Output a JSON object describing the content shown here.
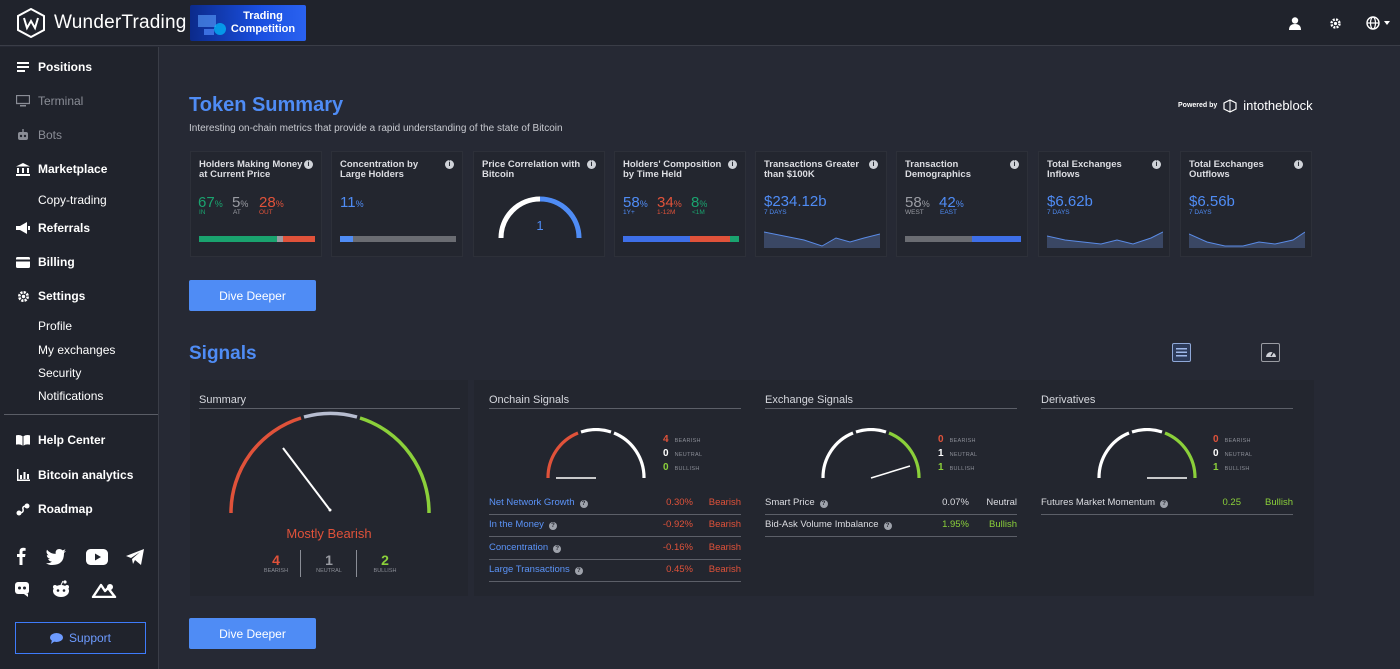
{
  "brand": {
    "name": "WunderTrading",
    "banner_line1": "Trading",
    "banner_line2": "Competition"
  },
  "topbar": {
    "icons": [
      "user-icon",
      "settings-icon",
      "globe-icon"
    ]
  },
  "sidebar": {
    "positions": "Positions",
    "terminal": "Terminal",
    "bots": "Bots",
    "marketplace": "Marketplace",
    "copy_trading": "Copy-trading",
    "referrals": "Referrals",
    "billing": "Billing",
    "settings": "Settings",
    "profile": "Profile",
    "my_exchanges": "My exchanges",
    "security": "Security",
    "notifications": "Notifications",
    "help_center": "Help Center",
    "bitcoin_analytics": "Bitcoin analytics",
    "roadmap": "Roadmap",
    "support": "Support"
  },
  "token_summary": {
    "title": "Token Summary",
    "subtitle": "Interesting on-chain metrics that provide a rapid understanding of the state of Bitcoin",
    "powered_by": "Powered by",
    "powered_brand": "intotheblock",
    "dive_deeper": "Dive Deeper",
    "cards": {
      "holders": {
        "title": "Holders Making Money at Current Price",
        "in": "67",
        "at": "5",
        "out": "28",
        "in_lbl": "IN",
        "at_lbl": "AT",
        "out_lbl": "OUT",
        "pct": "%"
      },
      "concentration": {
        "title": "Concentration by Large Holders",
        "value": "11",
        "pct": "%",
        "level": 11
      },
      "correlation": {
        "title": "Price Correlation with Bitcoin",
        "value": "1"
      },
      "composition": {
        "title": "Holders' Composition by Time Held",
        "a": "58",
        "b": "34",
        "c": "8",
        "a_lbl": "1Y+",
        "b_lbl": "1-12M",
        "c_lbl": "<1M",
        "pct": "%"
      },
      "transactions": {
        "title": "Transactions Greater than $100K",
        "value": "$234.12b",
        "days": "7 DAYS"
      },
      "demographics": {
        "title": "Transaction Demographics",
        "west": "58",
        "east": "42",
        "west_lbl": "WEST",
        "east_lbl": "EAST",
        "pct": "%"
      },
      "inflows": {
        "title": "Total Exchanges Inflows",
        "value": "$6.62b",
        "days": "7 DAYS"
      },
      "outflows": {
        "title": "Total Exchanges Outflows",
        "value": "$6.56b",
        "days": "7 DAYS"
      }
    }
  },
  "signals": {
    "title": "Signals",
    "dive_deeper": "Dive Deeper",
    "summary": {
      "title": "Summary",
      "verdict": "Mostly Bearish",
      "bearish": "4",
      "neutral": "1",
      "bullish": "2",
      "bearish_lbl": "BEARISH",
      "neutral_lbl": "NEUTRAL",
      "bullish_lbl": "BULLISH"
    },
    "onchain": {
      "title": "Onchain Signals",
      "bearish": "4",
      "neutral": "0",
      "bullish": "0",
      "rows": [
        {
          "name": "Net Network Growth",
          "value": "0.30%",
          "status": "Bearish"
        },
        {
          "name": "In the Money",
          "value": "-0.92%",
          "status": "Bearish"
        },
        {
          "name": "Concentration",
          "value": "-0.16%",
          "status": "Bearish"
        },
        {
          "name": "Large Transactions",
          "value": "0.45%",
          "status": "Bearish"
        }
      ]
    },
    "exchange": {
      "title": "Exchange Signals",
      "bearish": "0",
      "neutral": "1",
      "bullish": "1",
      "rows": [
        {
          "name": "Smart Price",
          "value": "0.07%",
          "status": "Neutral"
        },
        {
          "name": "Bid-Ask Volume Imbalance",
          "value": "1.95%",
          "status": "Bullish"
        }
      ]
    },
    "derivatives": {
      "title": "Derivatives",
      "bearish": "0",
      "neutral": "0",
      "bullish": "1",
      "rows": [
        {
          "name": "Futures Market Momentum",
          "value": "0.25",
          "status": "Bullish"
        }
      ]
    },
    "labels": {
      "bearish": "BEARISH",
      "neutral": "NEUTRAL",
      "bullish": "BULLISH"
    }
  },
  "colors": {
    "accent": "#4f8cf5",
    "bearish": "#e0523a",
    "bullish": "#8bd03a",
    "neutral": "#9a9ca3",
    "positive": "#1aa36f"
  }
}
